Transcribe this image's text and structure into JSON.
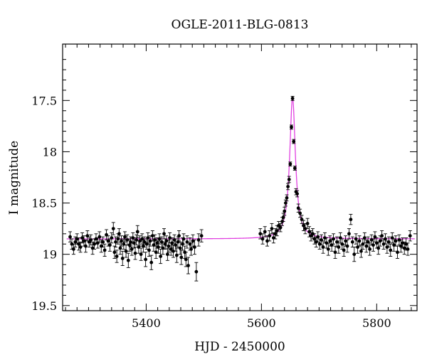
{
  "chart_data": {
    "type": "scatter",
    "title": "OGLE-2011-BLG-0813",
    "xlabel": "HJD - 2450000",
    "ylabel": "I magnitude",
    "xlim": [
      5255,
      5870
    ],
    "ylim": [
      19.55,
      16.95
    ],
    "y_inverted": true,
    "x_ticks": [
      5400,
      5600,
      5800
    ],
    "y_ticks": [
      17.5,
      18,
      18.5,
      19,
      19.5
    ],
    "x_tick_labels": [
      "5400",
      "5600",
      "5800"
    ],
    "y_tick_labels": [
      "17.5",
      "18",
      "18.5",
      "19",
      "19.5"
    ],
    "grid": false,
    "legend": "none",
    "colors": {
      "data": "#000000",
      "model": "#e040e0"
    },
    "series": [
      {
        "kind": "points_with_errorbars",
        "points": [
          [
            5268,
            18.83,
            0.05
          ],
          [
            5271,
            18.9,
            0.05
          ],
          [
            5274,
            18.95,
            0.05
          ],
          [
            5277,
            18.88,
            0.05
          ],
          [
            5280,
            18.85,
            0.05
          ],
          [
            5283,
            18.9,
            0.06
          ],
          [
            5286,
            18.93,
            0.05
          ],
          [
            5289,
            18.84,
            0.05
          ],
          [
            5292,
            18.87,
            0.05
          ],
          [
            5295,
            18.92,
            0.06
          ],
          [
            5298,
            18.82,
            0.05
          ],
          [
            5301,
            18.88,
            0.05
          ],
          [
            5304,
            18.86,
            0.05
          ],
          [
            5307,
            18.94,
            0.06
          ],
          [
            5310,
            18.9,
            0.05
          ],
          [
            5313,
            18.85,
            0.05
          ],
          [
            5316,
            18.89,
            0.05
          ],
          [
            5319,
            18.83,
            0.05
          ],
          [
            5322,
            18.92,
            0.06
          ],
          [
            5325,
            18.88,
            0.05
          ],
          [
            5328,
            18.96,
            0.06
          ],
          [
            5331,
            18.81,
            0.05
          ],
          [
            5334,
            18.87,
            0.05
          ],
          [
            5337,
            18.91,
            0.06
          ],
          [
            5340,
            18.84,
            0.05
          ],
          [
            5343,
            18.75,
            0.06
          ],
          [
            5345,
            18.98,
            0.06
          ],
          [
            5347,
            18.88,
            0.05
          ],
          [
            5349,
            19.02,
            0.06
          ],
          [
            5351,
            18.85,
            0.05
          ],
          [
            5353,
            18.8,
            0.05
          ],
          [
            5355,
            18.94,
            0.06
          ],
          [
            5357,
            18.87,
            0.05
          ],
          [
            5359,
            19.04,
            0.07
          ],
          [
            5361,
            18.9,
            0.05
          ],
          [
            5363,
            18.83,
            0.05
          ],
          [
            5365,
            18.97,
            0.06
          ],
          [
            5367,
            18.86,
            0.05
          ],
          [
            5369,
            19.06,
            0.07
          ],
          [
            5371,
            18.91,
            0.06
          ],
          [
            5373,
            18.88,
            0.05
          ],
          [
            5375,
            18.95,
            0.06
          ],
          [
            5377,
            18.84,
            0.05
          ],
          [
            5379,
            18.89,
            0.05
          ],
          [
            5381,
            18.99,
            0.06
          ],
          [
            5383,
            18.86,
            0.05
          ],
          [
            5385,
            18.78,
            0.06
          ],
          [
            5387,
            18.93,
            0.06
          ],
          [
            5389,
            18.87,
            0.05
          ],
          [
            5391,
            19.0,
            0.06
          ],
          [
            5393,
            18.85,
            0.05
          ],
          [
            5395,
            18.92,
            0.06
          ],
          [
            5397,
            18.88,
            0.05
          ],
          [
            5399,
            19.05,
            0.07
          ],
          [
            5401,
            18.9,
            0.05
          ],
          [
            5403,
            18.84,
            0.05
          ],
          [
            5405,
            18.96,
            0.06
          ],
          [
            5407,
            18.87,
            0.05
          ],
          [
            5409,
            19.08,
            0.07
          ],
          [
            5411,
            18.82,
            0.05
          ],
          [
            5413,
            18.91,
            0.06
          ],
          [
            5415,
            18.86,
            0.05
          ],
          [
            5417,
            18.98,
            0.06
          ],
          [
            5419,
            18.89,
            0.05
          ],
          [
            5421,
            18.93,
            0.06
          ],
          [
            5423,
            18.85,
            0.05
          ],
          [
            5425,
            19.02,
            0.07
          ],
          [
            5427,
            18.88,
            0.05
          ],
          [
            5429,
            18.94,
            0.06
          ],
          [
            5431,
            18.8,
            0.05
          ],
          [
            5433,
            18.9,
            0.05
          ],
          [
            5435,
            18.87,
            0.05
          ],
          [
            5437,
            19.0,
            0.06
          ],
          [
            5439,
            18.92,
            0.06
          ],
          [
            5441,
            18.84,
            0.05
          ],
          [
            5443,
            18.95,
            0.06
          ],
          [
            5445,
            18.89,
            0.05
          ],
          [
            5447,
            18.97,
            0.06
          ],
          [
            5449,
            18.86,
            0.05
          ],
          [
            5451,
            18.91,
            0.06
          ],
          [
            5453,
            19.01,
            0.07
          ],
          [
            5455,
            18.88,
            0.05
          ],
          [
            5457,
            18.82,
            0.05
          ],
          [
            5459,
            18.94,
            0.06
          ],
          [
            5461,
            19.03,
            0.07
          ],
          [
            5463,
            18.9,
            0.06
          ],
          [
            5465,
            18.85,
            0.05
          ],
          [
            5467,
            18.98,
            0.06
          ],
          [
            5469,
            19.05,
            0.07
          ],
          [
            5471,
            18.88,
            0.06
          ],
          [
            5473,
            19.11,
            0.08
          ],
          [
            5476,
            18.9,
            0.06
          ],
          [
            5478,
            18.95,
            0.06
          ],
          [
            5481,
            18.87,
            0.06
          ],
          [
            5484,
            18.93,
            0.07
          ],
          [
            5487,
            19.17,
            0.09
          ],
          [
            5491,
            18.86,
            0.06
          ],
          [
            5496,
            18.82,
            0.06
          ],
          [
            5598,
            18.8,
            0.05
          ],
          [
            5602,
            18.85,
            0.05
          ],
          [
            5606,
            18.78,
            0.05
          ],
          [
            5610,
            18.87,
            0.05
          ],
          [
            5614,
            18.82,
            0.05
          ],
          [
            5618,
            18.75,
            0.05
          ],
          [
            5621,
            18.84,
            0.05
          ],
          [
            5624,
            18.8,
            0.05
          ],
          [
            5627,
            18.77,
            0.05
          ],
          [
            5630,
            18.72,
            0.04
          ],
          [
            5633,
            18.74,
            0.04
          ],
          [
            5636,
            18.68,
            0.04
          ],
          [
            5638,
            18.64,
            0.04
          ],
          [
            5640,
            18.58,
            0.04
          ],
          [
            5642,
            18.5,
            0.03
          ],
          [
            5644,
            18.45,
            0.03
          ],
          [
            5646,
            18.34,
            0.03
          ],
          [
            5648,
            18.27,
            0.03
          ],
          [
            5650,
            18.12,
            0.02
          ],
          [
            5652,
            17.76,
            0.02
          ],
          [
            5654,
            17.48,
            0.02
          ],
          [
            5656,
            17.9,
            0.02
          ],
          [
            5658,
            18.16,
            0.02
          ],
          [
            5660,
            18.39,
            0.03
          ],
          [
            5662,
            18.41,
            0.03
          ],
          [
            5664,
            18.55,
            0.04
          ],
          [
            5667,
            18.6,
            0.04
          ],
          [
            5670,
            18.66,
            0.04
          ],
          [
            5673,
            18.72,
            0.05
          ],
          [
            5676,
            18.75,
            0.05
          ],
          [
            5680,
            18.7,
            0.05
          ],
          [
            5683,
            18.78,
            0.05
          ],
          [
            5686,
            18.82,
            0.05
          ],
          [
            5689,
            18.8,
            0.05
          ],
          [
            5692,
            18.85,
            0.05
          ],
          [
            5695,
            18.88,
            0.05
          ],
          [
            5698,
            18.83,
            0.05
          ],
          [
            5701,
            18.9,
            0.05
          ],
          [
            5704,
            18.86,
            0.05
          ],
          [
            5707,
            18.93,
            0.06
          ],
          [
            5710,
            18.84,
            0.05
          ],
          [
            5713,
            18.89,
            0.05
          ],
          [
            5716,
            18.95,
            0.06
          ],
          [
            5719,
            18.87,
            0.05
          ],
          [
            5722,
            18.91,
            0.06
          ],
          [
            5725,
            18.85,
            0.05
          ],
          [
            5728,
            18.98,
            0.06
          ],
          [
            5731,
            18.88,
            0.05
          ],
          [
            5734,
            18.93,
            0.06
          ],
          [
            5737,
            18.84,
            0.05
          ],
          [
            5740,
            18.9,
            0.05
          ],
          [
            5743,
            18.96,
            0.06
          ],
          [
            5746,
            18.87,
            0.05
          ],
          [
            5749,
            18.92,
            0.06
          ],
          [
            5752,
            18.8,
            0.05
          ],
          [
            5755,
            18.66,
            0.05
          ],
          [
            5758,
            18.88,
            0.05
          ],
          [
            5761,
            19.0,
            0.07
          ],
          [
            5764,
            18.85,
            0.05
          ],
          [
            5767,
            18.93,
            0.06
          ],
          [
            5770,
            18.87,
            0.05
          ],
          [
            5773,
            18.97,
            0.06
          ],
          [
            5776,
            18.9,
            0.05
          ],
          [
            5779,
            18.84,
            0.05
          ],
          [
            5782,
            18.92,
            0.06
          ],
          [
            5785,
            18.88,
            0.05
          ],
          [
            5788,
            18.95,
            0.06
          ],
          [
            5791,
            18.86,
            0.05
          ],
          [
            5794,
            18.91,
            0.06
          ],
          [
            5797,
            18.83,
            0.05
          ],
          [
            5800,
            18.89,
            0.05
          ],
          [
            5803,
            18.94,
            0.06
          ],
          [
            5806,
            18.87,
            0.05
          ],
          [
            5809,
            18.82,
            0.05
          ],
          [
            5812,
            18.9,
            0.05
          ],
          [
            5815,
            18.85,
            0.05
          ],
          [
            5818,
            18.93,
            0.06
          ],
          [
            5821,
            18.88,
            0.05
          ],
          [
            5824,
            18.96,
            0.06
          ],
          [
            5827,
            18.84,
            0.05
          ],
          [
            5830,
            18.91,
            0.06
          ],
          [
            5833,
            18.87,
            0.05
          ],
          [
            5836,
            18.98,
            0.06
          ],
          [
            5839,
            18.86,
            0.05
          ],
          [
            5842,
            18.92,
            0.06
          ],
          [
            5845,
            18.89,
            0.05
          ],
          [
            5848,
            18.94,
            0.06
          ],
          [
            5851,
            18.9,
            0.06
          ],
          [
            5854,
            18.95,
            0.06
          ],
          [
            5858,
            18.82,
            0.05
          ]
        ]
      },
      {
        "kind": "model_curve",
        "t0": 5654,
        "baseline": 18.85,
        "peak": 17.47,
        "width_days": 6
      }
    ]
  }
}
